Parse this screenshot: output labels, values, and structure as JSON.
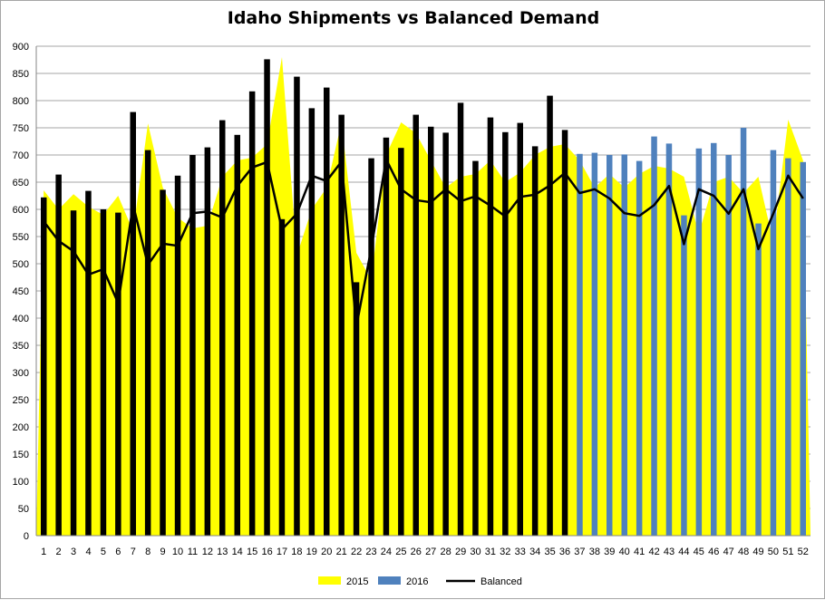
{
  "chart_data": {
    "type": "bar",
    "title": "Idaho Shipments vs Balanced Demand",
    "xlabel": "",
    "ylabel": "",
    "ylim": [
      0,
      900
    ],
    "ytick_step": 50,
    "grid": true,
    "legend_placement": "bottom",
    "categories": [
      "1",
      "2",
      "3",
      "4",
      "5",
      "6",
      "7",
      "8",
      "9",
      "10",
      "11",
      "12",
      "13",
      "14",
      "15",
      "16",
      "17",
      "18",
      "19",
      "20",
      "21",
      "22",
      "23",
      "24",
      "25",
      "26",
      "27",
      "28",
      "29",
      "30",
      "31",
      "32",
      "33",
      "34",
      "35",
      "36",
      "37",
      "38",
      "39",
      "40",
      "41",
      "42",
      "43",
      "44",
      "45",
      "46",
      "47",
      "48",
      "49",
      "50",
      "51",
      "52"
    ],
    "series": [
      {
        "name": "2015",
        "kind": "area",
        "color": "#ffff00",
        "values": [
          635,
          600,
          628,
          605,
          590,
          625,
          560,
          758,
          640,
          585,
          565,
          570,
          660,
          690,
          695,
          720,
          880,
          515,
          600,
          640,
          760,
          520,
          470,
          700,
          760,
          740,
          690,
          640,
          660,
          665,
          690,
          650,
          668,
          700,
          715,
          720,
          690,
          640,
          665,
          640,
          665,
          680,
          675,
          660,
          555,
          650,
          660,
          630,
          660,
          540,
          765,
          690
        ]
      },
      {
        "name": "2016",
        "kind": "bar",
        "color_1_36": "#000000",
        "color_37_52": "#4f81bd",
        "values": [
          622,
          664,
          598,
          634,
          600,
          594,
          779,
          709,
          636,
          662,
          700,
          714,
          764,
          737,
          817,
          876,
          582,
          844,
          786,
          824,
          774,
          466,
          694,
          732,
          713,
          774,
          752,
          741,
          796,
          689,
          769,
          742,
          759,
          716,
          809,
          746,
          702,
          704,
          700,
          701,
          689,
          734,
          721,
          589,
          712,
          722,
          700,
          750,
          574,
          709,
          694,
          687
        ]
      },
      {
        "name": "Balanced",
        "kind": "line",
        "color": "#000000",
        "values": [
          578,
          542,
          523,
          480,
          490,
          428,
          608,
          498,
          537,
          533,
          593,
          596,
          585,
          643,
          677,
          687,
          563,
          592,
          662,
          652,
          688,
          385,
          528,
          692,
          637,
          617,
          613,
          637,
          615,
          624,
          607,
          587,
          623,
          627,
          644,
          667,
          630,
          637,
          620,
          593,
          588,
          608,
          643,
          536,
          637,
          625,
          592,
          637,
          527,
          592,
          662,
          620
        ]
      }
    ]
  }
}
